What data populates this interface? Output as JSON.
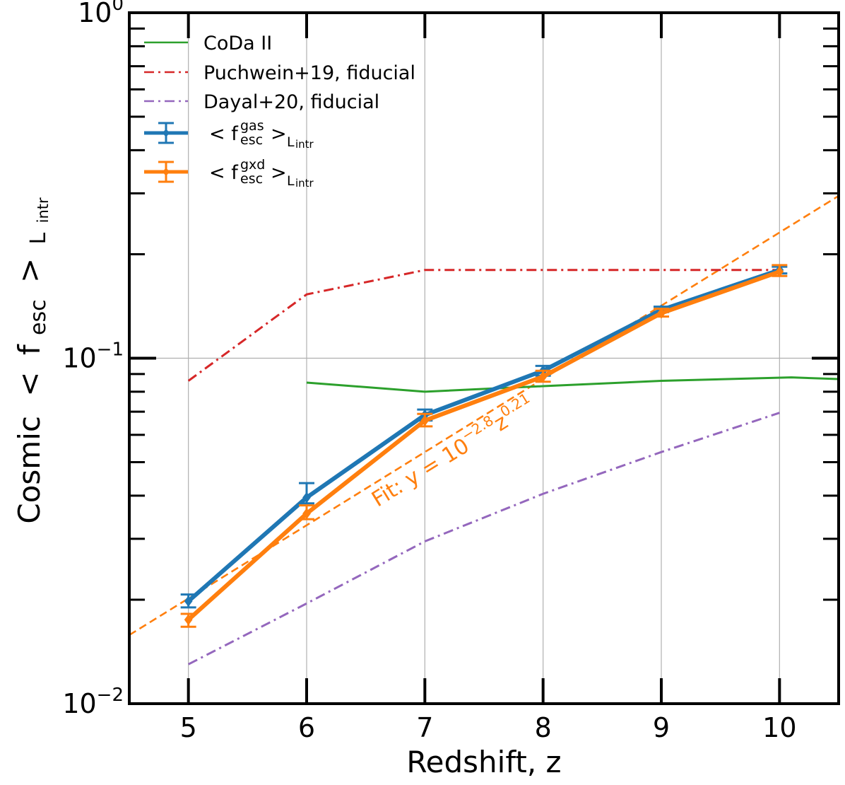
{
  "chart_data": {
    "type": "line",
    "xlabel": "Redshift, z",
    "ylabel": {
      "prefix": "Cosmic",
      "lt": "<",
      "f": "f",
      "f_sub": "esc",
      "gt": ">",
      "L": "L",
      "L_sub": "intr"
    },
    "xlim": [
      4.5,
      10.5
    ],
    "ylim": [
      0.01,
      1.0
    ],
    "yscale": "log",
    "grid": true,
    "x_ticks": [
      5,
      6,
      7,
      8,
      9,
      10
    ],
    "x_tick_labels": [
      "5",
      "6",
      "7",
      "8",
      "9",
      "10"
    ],
    "y_ticks": [
      {
        "value": 0.01,
        "base": "10",
        "exp": "−2"
      },
      {
        "value": 0.1,
        "base": "10",
        "exp": "−1"
      },
      {
        "value": 1.0,
        "base": "10",
        "exp": "0"
      }
    ],
    "legend_position": "top-left",
    "series": [
      {
        "key": "coda",
        "name": "CoDa II",
        "color": "#2ca02c",
        "style": "solid",
        "width": 3,
        "x": [
          6,
          7,
          8,
          9,
          10.1,
          10.5
        ],
        "y": [
          0.085,
          0.08,
          0.083,
          0.086,
          0.088,
          0.087
        ]
      },
      {
        "key": "puchwein",
        "name": "Puchwein+19, fiducial",
        "color": "#d62728",
        "style": "dashdot",
        "width": 3,
        "x": [
          5,
          6,
          7,
          8,
          9,
          10
        ],
        "y": [
          0.086,
          0.153,
          0.18,
          0.18,
          0.18,
          0.18
        ]
      },
      {
        "key": "dayal",
        "name": "Dayal+20, fiducial",
        "color": "#9467bd",
        "style": "dashdot",
        "width": 3,
        "x": [
          5,
          6,
          7,
          8,
          9,
          10
        ],
        "y": [
          0.013,
          0.0195,
          0.0295,
          0.0405,
          0.0535,
          0.0695
        ]
      },
      {
        "key": "gas",
        "label_base": "< f",
        "label_sup": "gas",
        "label_sub": "esc",
        "label_gt": ">",
        "label_L": "L",
        "label_Lsub": "intr",
        "color": "#1f77b4",
        "style": "solid",
        "width": 6,
        "marker": "diamond",
        "x": [
          5,
          6,
          7,
          8,
          9,
          10
        ],
        "y": [
          0.0198,
          0.0395,
          0.0685,
          0.092,
          0.138,
          0.18
        ],
        "yerr_low": [
          0.019,
          0.038,
          0.066,
          0.089,
          0.136,
          0.176
        ],
        "yerr_high": [
          0.0207,
          0.0435,
          0.071,
          0.095,
          0.141,
          0.184
        ]
      },
      {
        "key": "gxd",
        "label_base": "< f",
        "label_sup": "gxd",
        "label_sub": "esc",
        "label_gt": ">",
        "label_L": "L",
        "label_Lsub": "intr",
        "color": "#ff7f0e",
        "style": "solid",
        "width": 6,
        "marker": "diamond",
        "x": [
          5,
          6,
          7,
          8,
          9,
          10
        ],
        "y": [
          0.0175,
          0.0355,
          0.066,
          0.0885,
          0.135,
          0.178
        ],
        "yerr_low": [
          0.0167,
          0.0342,
          0.0635,
          0.0855,
          0.132,
          0.173
        ],
        "yerr_high": [
          0.0182,
          0.0375,
          0.069,
          0.092,
          0.139,
          0.186
        ]
      }
    ],
    "fit": {
      "color": "#ff7f0e",
      "style": "dashed",
      "x": [
        4.5,
        10.5
      ],
      "y": [
        0.0158,
        0.295
      ],
      "label_prefix": "Fit: y = 10",
      "label_exp1": "−2.8",
      "label_mid": "z",
      "label_exp2": "0.21",
      "label_anchor_x": 6.6,
      "label_anchor_y": 0.037
    }
  }
}
